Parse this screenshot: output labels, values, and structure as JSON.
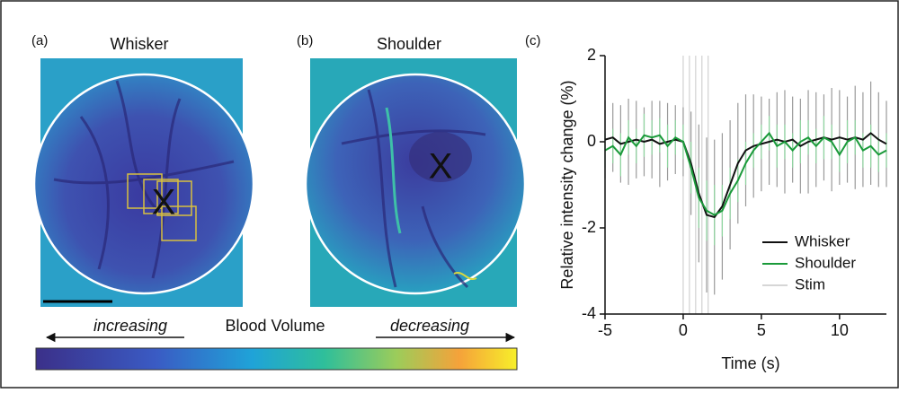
{
  "panels": [
    {
      "label": "(a)",
      "title": "Whisker",
      "marker": "X"
    },
    {
      "label": "(b)",
      "title": "Shoulder",
      "marker": "X"
    }
  ],
  "colorbar": {
    "left": "increasing",
    "center": "Blood Volume",
    "right": "decreasing"
  },
  "chart_data": {
    "type": "line",
    "panel_label": "(c)",
    "xlabel": "Time (s)",
    "ylabel": "Relative intensity change (%)",
    "x": [
      -5,
      -4.5,
      -4,
      -3.5,
      -3,
      -2.5,
      -2,
      -1.5,
      -1,
      -0.5,
      0,
      0.5,
      1,
      1.5,
      2,
      2.5,
      3,
      3.5,
      4,
      4.5,
      5,
      5.5,
      6,
      6.5,
      7,
      7.5,
      8,
      8.5,
      9,
      9.5,
      10,
      10.5,
      11,
      11.5,
      12,
      12.5,
      13
    ],
    "series": [
      {
        "name": "Whisker",
        "color": "#111111",
        "values": [
          0.05,
          0.1,
          -0.05,
          0,
          0.05,
          0,
          0.05,
          -0.05,
          0,
          0.05,
          0,
          -0.5,
          -1.2,
          -1.7,
          -1.75,
          -1.5,
          -1,
          -0.5,
          -0.2,
          -0.1,
          -0.05,
          0,
          0.05,
          0,
          0.05,
          -0.1,
          0,
          0.05,
          0.1,
          0.05,
          0.1,
          0.05,
          0.1,
          0.05,
          0.2,
          0.05,
          -0.05
        ],
        "errors": [
          0.9,
          0.8,
          0.9,
          1.0,
          0.9,
          0.8,
          0.9,
          1.0,
          0.9,
          0.8,
          0.8,
          1.2,
          1.6,
          1.8,
          1.8,
          1.7,
          1.5,
          1.4,
          1.3,
          1.2,
          1.1,
          1.0,
          1.1,
          1.2,
          1.0,
          1.1,
          1.2,
          1.1,
          1.0,
          1.2,
          1.1,
          1.0,
          1.2,
          1.1,
          1.2,
          1.1,
          1.0
        ]
      },
      {
        "name": "Shoulder",
        "color": "#1a9a3a",
        "values": [
          -0.2,
          -0.1,
          -0.3,
          0.1,
          -0.1,
          0.15,
          0.1,
          0.15,
          -0.1,
          0.1,
          0,
          -0.6,
          -1.3,
          -1.6,
          -1.7,
          -1.6,
          -1.2,
          -0.9,
          -0.5,
          -0.2,
          0,
          0.2,
          -0.1,
          0,
          -0.2,
          0,
          0.1,
          -0.1,
          0.1,
          0,
          -0.3,
          0,
          0.1,
          -0.2,
          -0.1,
          -0.3,
          -0.2
        ],
        "errors": [
          0.4,
          0.4,
          0.5,
          0.4,
          0.4,
          0.5,
          0.4,
          0.4,
          0.5,
          0.4,
          0.4,
          0.6,
          0.7,
          0.7,
          0.7,
          0.6,
          0.6,
          0.5,
          0.5,
          0.4,
          0.4,
          0.4,
          0.5,
          0.4,
          0.4,
          0.5,
          0.4,
          0.4,
          0.5,
          0.4,
          0.4,
          0.5,
          0.4,
          0.4,
          0.5,
          0.4,
          0.4
        ]
      }
    ],
    "stim": {
      "name": "Stim",
      "color": "#c8c8c8",
      "x": [
        0,
        0.4,
        0.8,
        1.2,
        1.6
      ]
    },
    "xlim": [
      -5,
      13
    ],
    "ylim": [
      -4,
      2
    ],
    "xticks": [
      -5,
      0,
      5,
      10
    ],
    "yticks": [
      -4,
      -2,
      0,
      2
    ],
    "legend": "lower right"
  }
}
